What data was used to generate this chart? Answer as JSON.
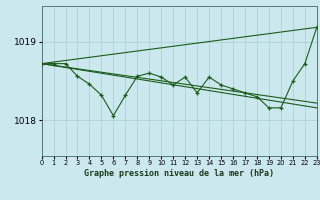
{
  "title": "Graphe pression niveau de la mer (hPa)",
  "background_color": "#cce8ef",
  "plot_bg_color": "#cce8ef",
  "grid_color": "#aacccc",
  "line_color": "#1a5c1a",
  "ylim": [
    1017.55,
    1019.45
  ],
  "yticks": [
    1018,
    1019
  ],
  "xticks": [
    0,
    1,
    2,
    3,
    4,
    5,
    6,
    7,
    8,
    9,
    10,
    11,
    12,
    13,
    14,
    15,
    16,
    17,
    18,
    19,
    20,
    21,
    22,
    23
  ],
  "series1_x": [
    0,
    1,
    2,
    3,
    4,
    5,
    6,
    7,
    8,
    9,
    10,
    11,
    12,
    13,
    14,
    15,
    16,
    17,
    18,
    19,
    20,
    21,
    22,
    23
  ],
  "series1_y": [
    1018.72,
    1018.72,
    1018.72,
    1018.56,
    1018.46,
    1018.32,
    1018.06,
    1018.32,
    1018.56,
    1018.6,
    1018.55,
    1018.45,
    1018.55,
    1018.35,
    1018.55,
    1018.45,
    1018.4,
    1018.35,
    1018.3,
    1018.16,
    1018.16,
    1018.5,
    1018.72,
    1019.18
  ],
  "series2_x": [
    0,
    23
  ],
  "series2_y": [
    1018.72,
    1019.18
  ],
  "series3_x": [
    0,
    23
  ],
  "series3_y": [
    1018.72,
    1018.16
  ],
  "series4_x": [
    0,
    23
  ],
  "series4_y": [
    1018.72,
    1018.22
  ]
}
